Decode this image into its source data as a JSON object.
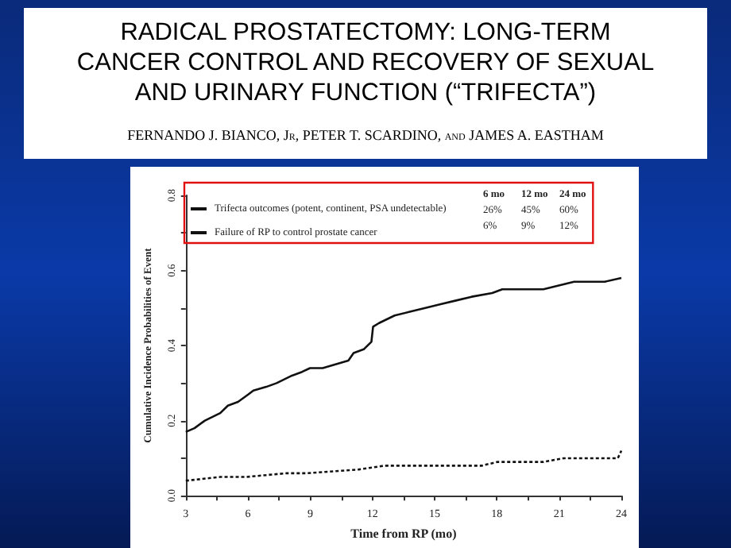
{
  "chart_data": {
    "type": "line",
    "title": "RADICAL PROSTATECTOMY: LONG-TERM CANCER CONTROL AND RECOVERY OF SEXUAL AND URINARY FUNCTION (“TRIFECTA”)",
    "subtitle": "FERNANDO J. BIANCO, Jr, PETER T. SCARDINO, and JAMES A. EASTHAM",
    "xlabel": "Time from RP (mo)",
    "ylabel": "Cumulative Incidence Probabilities of Event",
    "annotations": [
      "6 mo",
      "12 mo",
      "24 mo",
      "26%",
      "45%",
      "60%",
      "6%",
      "9%",
      "12%"
    ],
    "xlim": [
      3,
      24
    ],
    "xticks": [
      3,
      {
        "value": 4.5,
        "label": null
      },
      6,
      {
        "value": 7.5,
        "label": null
      },
      9,
      {
        "value": 10.5,
        "label": null
      },
      12,
      {
        "value": 13.5,
        "label": null
      },
      15,
      {
        "value": 16.5,
        "label": null
      },
      18,
      {
        "value": 19.5,
        "label": null
      },
      21,
      {
        "value": 22.5,
        "label": null
      },
      24
    ],
    "ylim": [
      0,
      0.8
    ],
    "yticks": [
      {
        "value": 0,
        "label": "0.0"
      },
      {
        "value": 0.1,
        "label": null
      },
      {
        "value": 0.2,
        "label": "0.2"
      },
      {
        "value": 0.3,
        "label": null
      },
      {
        "value": 0.4,
        "label": "0.4"
      },
      {
        "value": 0.5,
        "label": null
      },
      {
        "value": 0.6,
        "label": "0.6"
      },
      {
        "value": 0.7,
        "label": null
      },
      {
        "value": 0.8,
        "label": "0.8"
      }
    ],
    "grid": false,
    "legend": "top left",
    "marker": "none",
    "series": [
      {
        "name": "Trifecta outcomes (potent, continent, PSA undetectable)",
        "color": "#111111",
        "line_style": "solid",
        "x": [
          3.0,
          3.42,
          3.92,
          4.66,
          5.03,
          5.52,
          6.02,
          6.26,
          6.88,
          7.38,
          8.12,
          8.61,
          8.99,
          9.6,
          10.22,
          10.84,
          11.09,
          11.58,
          11.95,
          12.03,
          12.32,
          13.07,
          13.8,
          14.55,
          15.29,
          16.03,
          16.78,
          17.77,
          18.26,
          19.25,
          20.24,
          20.98,
          21.72,
          22.34,
          23.2,
          24.0
        ],
        "values": [
          0.17,
          0.18,
          0.2,
          0.22,
          0.24,
          0.25,
          0.27,
          0.28,
          0.29,
          0.3,
          0.32,
          0.33,
          0.34,
          0.34,
          0.35,
          0.36,
          0.38,
          0.39,
          0.41,
          0.45,
          0.46,
          0.48,
          0.49,
          0.5,
          0.51,
          0.52,
          0.53,
          0.54,
          0.55,
          0.55,
          0.55,
          0.56,
          0.57,
          0.57,
          0.57,
          0.58
        ]
      },
      {
        "name": "Failure of RP to control prostate cancer",
        "color": "#111111",
        "line_style": "dotted",
        "x": [
          3.0,
          4.66,
          5.9,
          7.87,
          8.86,
          11.34,
          12.57,
          15.79,
          17.27,
          18.01,
          20.24,
          21.23,
          23.83,
          24.0
        ],
        "values": [
          0.04,
          0.05,
          0.05,
          0.06,
          0.06,
          0.07,
          0.08,
          0.08,
          0.08,
          0.09,
          0.09,
          0.1,
          0.1,
          0.12
        ]
      }
    ]
  }
}
